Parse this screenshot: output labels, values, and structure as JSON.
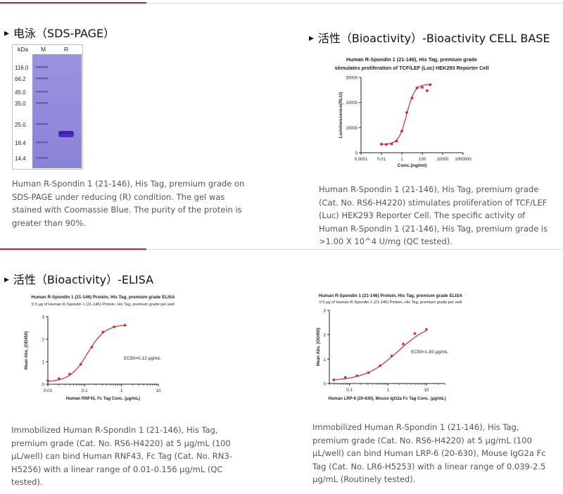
{
  "sections": {
    "sds": {
      "title": "电泳（SDS-PAGE）",
      "gel": {
        "header": {
          "unit": "kDa",
          "marker": "M",
          "reduced": "R"
        },
        "markers": [
          "116.0",
          "66.2",
          "45.0",
          "35.0",
          "25.0",
          "18.4",
          "14.4"
        ]
      },
      "description": "Human R-Spondin 1 (21-146), His Tag, premium grade on SDS-PAGE under reducing (R) condition. The gel was stained with Coomassie Blue. The purity of the protein is greater than 90%."
    },
    "cell": {
      "title": "活性（Bioactivity）-Bioactivity CELL BASE",
      "description": "Human R-Spondin 1 (21-146), His Tag, premium grade (Cat. No. RS6-H4220) stimulates proliferation of TCF/LEF (Luc) HEK293 Reporter Cell. The specific activity of Human R-Spondin 1 (21-146), His Tag, premium grade is >1.00 X 10^4 U/mg (QC tested)."
    },
    "elisa": {
      "title": "活性（Bioactivity）-ELISA",
      "left_description": "Immobilized Human R-Spondin 1 (21-146), His Tag, premium grade (Cat. No. RS6-H4220) at 5 μg/mL (100 μL/well) can bind Human RNF43, Fc Tag (Cat. No. RN3-H5256) with a linear range of 0.01-0.156 μg/mL (QC tested).",
      "right_description": "Immobilized Human R-Spondin 1 (21-146), His Tag, premium grade (Cat. No. RS6-H4220) at 5 μg/mL (100 μL/well) can bind Human LRP-6 (20-630), Mouse IgG2a Fc Tag (Cat. No. LR6-H5253) with a linear range of 0.039-2.5 μg/mL (Routinely tested)."
    }
  },
  "colors": {
    "accent": "#d0202a",
    "curve": "#d6282f",
    "gel_bg": "#8e87d8",
    "band": "#4e2bb8"
  },
  "chart_data": [
    {
      "id": "cell",
      "type": "scatter",
      "title": "Human R-Spondin 1 (21-146), His Tag, premium grade",
      "subtitle": "stimulates proliferation of TCF/LEF (Luc) HEK293 Reporter Cell",
      "xlabel": "Conc.(ng/ml)",
      "ylabel": "Luminescence(RLU)",
      "xscale": "log",
      "xlim": [
        0.0001,
        1000000
      ],
      "ylim": [
        0,
        30000
      ],
      "xticks": [
        "0.0001",
        "0.01",
        "1",
        "100",
        "10000",
        "1000000"
      ],
      "yticks": [
        "0",
        "10000",
        "20000",
        "30000"
      ],
      "x": [
        0.01,
        0.03,
        0.1,
        0.3,
        1,
        3,
        10,
        30,
        100,
        300,
        600
      ],
      "y": [
        3400,
        3300,
        3500,
        4600,
        8600,
        16000,
        21800,
        25800,
        26000,
        24700,
        27100
      ],
      "fit": {
        "bottom": 3300,
        "top": 27300,
        "ec50": 3,
        "hill": 1.1
      }
    },
    {
      "id": "elisa-rnf43",
      "type": "scatter",
      "title": "Human R-Spondin 1 (21-146) Protein, His Tag, premium grade ELISA",
      "subtitle": "0.5 μg of Human R-Spondin 1 (21-146) Protein, His Tag, premium grade per well",
      "xlabel": "Human RNF43, Fc Tag Conc. (μg/mL)",
      "ylabel": "Mean Abs. (OD450)",
      "xscale": "log",
      "xlim": [
        0.01,
        10
      ],
      "ylim": [
        0,
        3
      ],
      "xticks": [
        "0.01",
        "0.1",
        "1",
        "10"
      ],
      "yticks": [
        "0",
        "1",
        "2",
        "3"
      ],
      "annotation": "EC50=0.12 μg/mL",
      "x": [
        0.01,
        0.02,
        0.039,
        0.078,
        0.156,
        0.313,
        0.625,
        1.25
      ],
      "y": [
        0.16,
        0.25,
        0.45,
        0.88,
        1.65,
        2.32,
        2.55,
        2.62
      ],
      "fit": {
        "bottom": 0.1,
        "top": 2.66,
        "ec50": 0.12,
        "hill": 1.8
      }
    },
    {
      "id": "elisa-lrp6",
      "type": "scatter",
      "title": "Human R-Spondin 1 (21-146) Protein, His Tag, premium grade ELISA",
      "subtitle": "0.5 μg of Human R-Spondin 1 (21-146) Protein, His Tag, premium grade per well",
      "xlabel": "Human LRP-6 (20-630), Mouse IgG2a Fc Tag Conc. (μg/mL)",
      "ylabel": "Mean Abs. (OD450)",
      "xscale": "log",
      "xlim": [
        0.03,
        30
      ],
      "ylim": [
        0,
        3
      ],
      "xticks": [
        "0.1",
        "1",
        "10"
      ],
      "yticks": [
        "0",
        "1",
        "2",
        "3"
      ],
      "annotation": "EC50=1.83 μg/mL",
      "x": [
        0.039,
        0.078,
        0.156,
        0.313,
        0.625,
        1.25,
        2.5,
        5,
        10
      ],
      "y": [
        0.15,
        0.25,
        0.32,
        0.45,
        0.73,
        1.13,
        1.62,
        2.05,
        2.22
      ],
      "fit": {
        "bottom": 0.1,
        "top": 2.55,
        "ec50": 1.83,
        "hill": 1.0
      }
    }
  ]
}
